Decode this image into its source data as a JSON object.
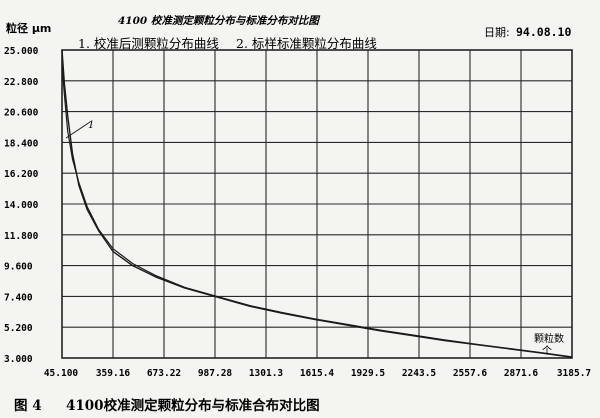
{
  "header": {
    "y_unit_label": "粒径 μm",
    "title": "4100 校准测定颗粒分布与标准分布对比图",
    "date_label": "日期:",
    "date_value": "94.08.10"
  },
  "legend": {
    "line1": "1. 校准后测颗粒分布曲线",
    "line2": "2. 标样标准颗粒分布曲线"
  },
  "curve_label": "1",
  "corner_label": {
    "line1": "颗粒数",
    "line2": "个"
  },
  "caption": {
    "figure_no": "图 4",
    "text": "4100校准测定颗粒分布与标准合布对比图"
  },
  "chart_data": {
    "type": "line",
    "title": "4100 校准测定颗粒分布与标准分布对比图",
    "ylabel": "粒径 μm",
    "xlabel": "颗粒数 个",
    "xlim": [
      45.1,
      3185.7
    ],
    "ylim": [
      3.0,
      25.0
    ],
    "x_ticks": [
      "45.100",
      "359.16",
      "673.22",
      "987.28",
      "1301.3",
      "1615.4",
      "1929.5",
      "2243.5",
      "2557.6",
      "2871.6",
      "3185.7"
    ],
    "y_ticks": [
      "25.000",
      "22.800",
      "20.600",
      "18.400",
      "16.200",
      "14.000",
      "11.800",
      "9.600",
      "7.400",
      "5.200",
      "3.000"
    ],
    "grid": true,
    "series": [
      {
        "name": "1. 校准后测颗粒分布曲线",
        "x": [
          45.1,
          60,
          80,
          110,
          150,
          200,
          270,
          360,
          480,
          620,
          800,
          1000,
          1200,
          1400,
          1600,
          1800,
          2000,
          2200,
          2400,
          2600,
          2800,
          3000,
          3185.7
        ],
        "y": [
          25.0,
          22.6,
          20.3,
          17.6,
          15.3,
          13.6,
          12.1,
          10.6,
          9.6,
          8.8,
          8.0,
          7.35,
          6.7,
          6.2,
          5.75,
          5.35,
          4.95,
          4.6,
          4.25,
          3.95,
          3.65,
          3.35,
          3.05
        ]
      },
      {
        "name": "2. 标样标准颗粒分布曲线",
        "x": [
          45.1,
          60,
          80,
          110,
          150,
          200,
          270,
          360,
          480,
          620,
          800,
          1000,
          1200,
          1400,
          1600,
          1800,
          2000,
          2200,
          2400,
          2600,
          2800,
          3000,
          3185.7
        ],
        "y": [
          23.9,
          21.8,
          19.2,
          17.2,
          15.5,
          13.8,
          12.2,
          10.8,
          9.75,
          8.9,
          8.05,
          7.4,
          6.75,
          6.25,
          5.8,
          5.4,
          5.0,
          4.65,
          4.3,
          3.98,
          3.68,
          3.38,
          3.08
        ]
      }
    ]
  },
  "colors": {
    "background": "#f4f4f1",
    "grid": "#2a2a2a",
    "curve": "#1a1a1a"
  }
}
